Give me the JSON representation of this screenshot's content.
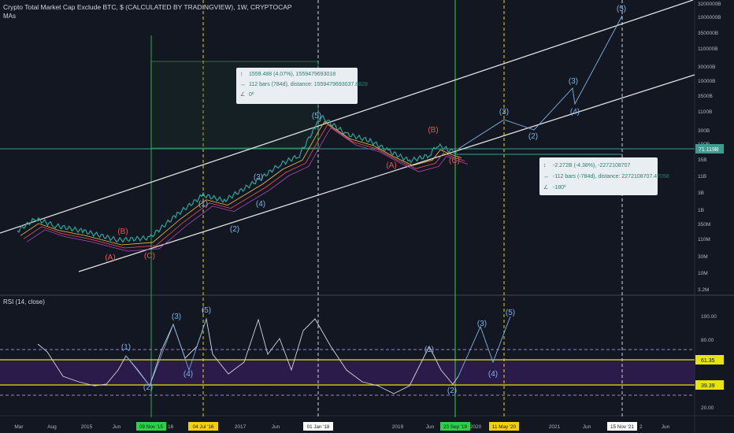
{
  "header": {
    "title": "Crypto Total Market Cap Exclude BTC, $ (CALCULATED BY TRADINGVIEW), 1W, CRYPTOCAP",
    "indicator": "MAs"
  },
  "rsi_header": "RSI (14, close)",
  "colors": {
    "background": "#131722",
    "rsi_band": "#2a1b4a",
    "rsi_line_yellow": "#e6e600",
    "price_line": "#5b8fb0",
    "wave_blue": "#7fb3e6",
    "wave_red": "#ef5350",
    "vline_yellow": "#f5d100",
    "vline_green": "#2bd14a",
    "vline_white": "#d1d4dc"
  },
  "price_scale_labels": [
    "3200000B",
    "1000000B",
    "350000B",
    "110000B",
    "30000B",
    "10000B",
    "3500B",
    "1100B",
    "300B",
    "100B",
    "35B",
    "11B",
    "3B",
    "1B",
    "350M",
    "110M",
    "30M",
    "10M",
    "3.2M"
  ],
  "current_price_tag": "71.119B",
  "rsi_scale_labels": [
    "100.00",
    "80.00",
    "20.00"
  ],
  "rsi_tags": [
    "61.35",
    "39.39"
  ],
  "time_labels": [
    "Mar",
    "Aug",
    "2015",
    "Jun",
    "2017",
    "Jun",
    "2019",
    "Jun",
    "2020",
    "2021",
    "Jun",
    "Jun"
  ],
  "date_tags": [
    {
      "text": "09 Nov '15",
      "color": "green"
    },
    {
      "text": "04 Jul '16",
      "color": "yellow"
    },
    {
      "text": "01 Jan '18",
      "color": "white"
    },
    {
      "text": "23 Sep '19",
      "color": "green"
    },
    {
      "text": "11 May '20",
      "color": "yellow"
    },
    {
      "text": "15 Nov '21",
      "color": "white"
    }
  ],
  "date_tag_suffix": "16",
  "date_tag_suffix2": "2",
  "measure_box_1": {
    "line1": "1559.488 (4.07%), 1559479693018",
    "line2": "112 bars (784d), distance: 1559479693037.8828",
    "line3": "0º"
  },
  "measure_box_2": {
    "line1": "-2.272B (-4.38%), -2272108707",
    "line2": "-112 bars (-784d), distance: 2272108707.47056",
    "line3": "-180º"
  },
  "wave_labels_price": [
    "(A)",
    "(B)",
    "(C)",
    "(1)",
    "(2)",
    "(3)",
    "(4)",
    "(5)",
    "(A)",
    "(B)",
    "(C)",
    "(3)",
    "(2)",
    "(3)",
    "(4)",
    "(5)"
  ],
  "wave_labels_rsi": [
    "(1)",
    "(2)",
    "(3)",
    "(4)",
    "(5)",
    "(1)",
    "(2)",
    "(3)",
    "(4)",
    "(5)"
  ],
  "chart_data": {
    "type": "line",
    "title": "Crypto Total Market Cap Exclude BTC, $ (CALCULATED BY TRADINGVIEW), 1W, CRYPTOCAP",
    "ylabel": "",
    "xlabel": "",
    "y_scale": "log",
    "series": [
      {
        "name": "Crypto Total Market Cap Exclude BTC",
        "x": [
          "2014-03",
          "2014-06",
          "2014-09",
          "2015-01",
          "2015-06",
          "2015-11",
          "2016-03",
          "2016-07",
          "2016-11",
          "2017-03",
          "2017-06",
          "2017-09",
          "2017-12",
          "2018-01",
          "2018-04",
          "2018-07",
          "2018-10",
          "2019-01",
          "2019-04",
          "2019-06",
          "2019-09",
          "2019-10"
        ],
        "y_billions": [
          0.2,
          0.5,
          0.3,
          0.2,
          0.1,
          0.12,
          0.7,
          3,
          2,
          10,
          30,
          60,
          500,
          1100,
          300,
          180,
          80,
          40,
          60,
          130,
          90,
          71.119
        ]
      }
    ],
    "rsi": {
      "name": "RSI (14, close)",
      "levels": [
        61.35,
        39.39
      ],
      "ylim": [
        10,
        100
      ]
    }
  }
}
